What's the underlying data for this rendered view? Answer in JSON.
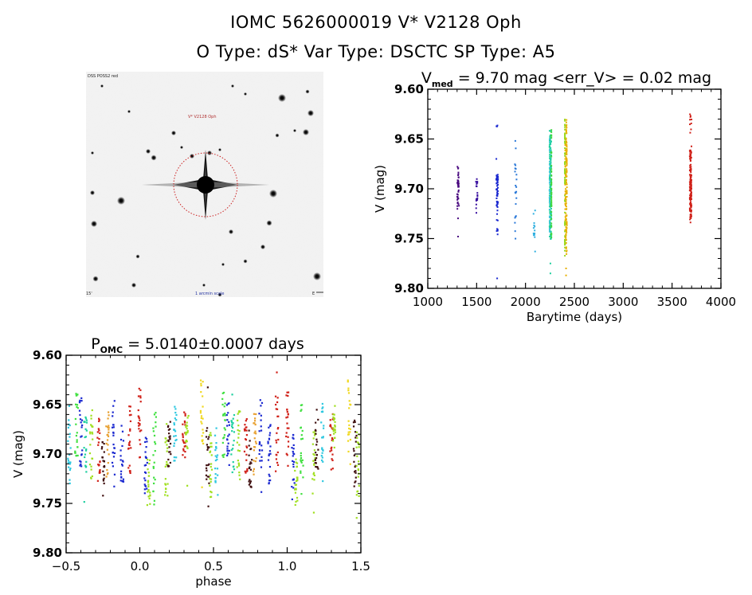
{
  "header": {
    "line1": "IOMC 5626000019    V* V2128 Oph",
    "line2": "O Type: dS*  Var Type: DSCTC  SP Type: A5"
  },
  "sky_image": {
    "description": "DSS finder chart, inverted grayscale",
    "label_top_left": "DSS POSS2 red",
    "target_label": "V* V2128 Oph",
    "label_bottom_left": "15'",
    "label_bottom_center": "1 arcmin scale",
    "label_bottom_right": "E",
    "circle_color": "#cc2222"
  },
  "chart_data": [
    {
      "type": "scatter",
      "name": "light-curve",
      "title_main": "V",
      "title_sub": "med",
      "title_rest": " = 9.70 mag <err_V> = 0.02 mag",
      "xlabel": "Barytime (days)",
      "ylabel": "V (mag)",
      "xlim": [
        1000,
        4000
      ],
      "ylim": [
        9.6,
        9.8
      ],
      "y_inverted": true,
      "xticks": [
        "1000",
        "1500",
        "2000",
        "2500",
        "3000",
        "3500",
        "4000"
      ],
      "xtick_values": [
        1000,
        1500,
        2000,
        2500,
        3000,
        3500,
        4000
      ],
      "yticks": [
        "9.60",
        "9.65",
        "9.70",
        "9.75",
        "9.80"
      ],
      "ytick_values": [
        9.6,
        9.65,
        9.7,
        9.75,
        9.8
      ],
      "grid": false,
      "series": [
        {
          "name": "season-1",
          "color": "#4a0a80",
          "t": 1310,
          "mag_min": 9.667,
          "mag_max": 9.73,
          "dense_min": 9.68,
          "dense_max": 9.72,
          "n": 40,
          "outliers": [
            9.748
          ]
        },
        {
          "name": "season-2",
          "color": "#3a10a0",
          "t": 1500,
          "mag_min": 9.675,
          "mag_max": 9.745,
          "dense_min": 9.69,
          "dense_max": 9.72,
          "n": 22,
          "outliers": []
        },
        {
          "name": "season-3",
          "color": "#1a28d0",
          "t": 1710,
          "mag_min": 9.633,
          "mag_max": 9.77,
          "dense_min": 9.685,
          "dense_max": 9.72,
          "n": 60,
          "outliers": [
            9.79
          ]
        },
        {
          "name": "season-4",
          "color": "#2a78d8",
          "t": 1900,
          "mag_min": 9.65,
          "mag_max": 9.765,
          "dense_min": 9.67,
          "dense_max": 9.74,
          "n": 22,
          "outliers": []
        },
        {
          "name": "season-5",
          "color": "#30b0e0",
          "t": 2090,
          "mag_min": 9.71,
          "mag_max": 9.765,
          "dense_min": 9.73,
          "dense_max": 9.75,
          "n": 14,
          "outliers": []
        },
        {
          "name": "season-6",
          "color": "#20d0a0",
          "t": 2255,
          "mag_min": 9.64,
          "mag_max": 9.755,
          "dense_min": 9.65,
          "dense_max": 9.75,
          "n": 160,
          "outliers": [
            9.775,
            9.785
          ]
        },
        {
          "name": "season-7",
          "color": "#e8b000",
          "t": 2415,
          "mag_min": 9.63,
          "mag_max": 9.77,
          "dense_min": 9.64,
          "dense_max": 9.755,
          "n": 160,
          "outliers": [
            9.78,
            9.787
          ]
        },
        {
          "name": "season-8",
          "color": "#d02018",
          "t": 3690,
          "mag_min": 9.625,
          "mag_max": 9.735,
          "dense_min": 9.66,
          "dense_max": 9.73,
          "n": 140,
          "outliers": []
        }
      ]
    },
    {
      "type": "scatter",
      "name": "phase-curve",
      "title_main": "P",
      "title_sub": "OMC",
      "title_rest": " = 5.0140±0.0007 days",
      "xlabel": "phase",
      "ylabel": "V (mag)",
      "xlim": [
        -0.5,
        1.5
      ],
      "ylim": [
        9.6,
        9.8
      ],
      "y_inverted": true,
      "xticks": [
        "-0.5",
        "0.0",
        "0.5",
        "1.0",
        "1.5"
      ],
      "xtick_values": [
        -0.5,
        0.0,
        0.5,
        1.0,
        1.5
      ],
      "yticks": [
        "9.60",
        "9.65",
        "9.70",
        "9.75",
        "9.80"
      ],
      "ytick_values": [
        9.6,
        9.65,
        9.7,
        9.75,
        9.8
      ],
      "grid": false,
      "period_days": 5.014,
      "palette": [
        "#4a0a80",
        "#1a28d0",
        "#2a78d8",
        "#30c8e0",
        "#20d0a0",
        "#40e040",
        "#a0e020",
        "#f0d820",
        "#e8a030",
        "#d02018",
        "#401010"
      ],
      "groups": [
        {
          "phase": 0.0,
          "center": 9.67,
          "spread": 0.035,
          "color": 9
        },
        {
          "phase": 0.04,
          "center": 9.71,
          "spread": 0.03,
          "color": 1
        },
        {
          "phase": 0.06,
          "center": 9.73,
          "spread": 0.025,
          "color": 6
        },
        {
          "phase": 0.1,
          "center": 9.69,
          "spread": 0.04,
          "color": 5
        },
        {
          "phase": 0.18,
          "center": 9.71,
          "spread": 0.035,
          "color": 6
        },
        {
          "phase": 0.2,
          "center": 9.69,
          "spread": 0.025,
          "color": 10
        },
        {
          "phase": 0.24,
          "center": 9.68,
          "spread": 0.03,
          "color": 3
        },
        {
          "phase": 0.3,
          "center": 9.68,
          "spread": 0.025,
          "color": 9
        },
        {
          "phase": 0.32,
          "center": 9.675,
          "spread": 0.02,
          "color": 6
        },
        {
          "phase": 0.42,
          "center": 9.66,
          "spread": 0.035,
          "color": 7
        },
        {
          "phase": 0.46,
          "center": 9.7,
          "spread": 0.035,
          "color": 10
        },
        {
          "phase": 0.48,
          "center": 9.71,
          "spread": 0.035,
          "color": 6
        },
        {
          "phase": 0.52,
          "center": 9.7,
          "spread": 0.03,
          "color": 3
        },
        {
          "phase": 0.57,
          "center": 9.67,
          "spread": 0.035,
          "color": 5
        },
        {
          "phase": 0.6,
          "center": 9.68,
          "spread": 0.035,
          "color": 1
        },
        {
          "phase": 0.63,
          "center": 9.69,
          "spread": 0.03,
          "color": 4
        },
        {
          "phase": 0.67,
          "center": 9.69,
          "spread": 0.035,
          "color": 6
        },
        {
          "phase": 0.72,
          "center": 9.69,
          "spread": 0.03,
          "color": 9
        },
        {
          "phase": 0.75,
          "center": 9.71,
          "spread": 0.025,
          "color": 10
        },
        {
          "phase": 0.78,
          "center": 9.69,
          "spread": 0.035,
          "color": 8
        },
        {
          "phase": 0.82,
          "center": 9.68,
          "spread": 0.035,
          "color": 1
        },
        {
          "phase": 0.88,
          "center": 9.7,
          "spread": 0.03,
          "color": 1
        },
        {
          "phase": 0.93,
          "center": 9.68,
          "spread": 0.04,
          "color": 9
        }
      ]
    }
  ]
}
